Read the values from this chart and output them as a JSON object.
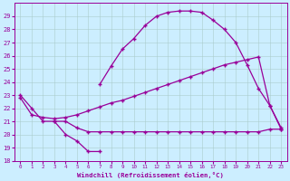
{
  "xlabel": "Windchill (Refroidissement éolien,°C)",
  "background_color": "#cceeff",
  "line_color": "#990099",
  "ylim": [
    18,
    30
  ],
  "xlim": [
    -0.5,
    23.5
  ],
  "yticks": [
    18,
    19,
    20,
    21,
    22,
    23,
    24,
    25,
    26,
    27,
    28,
    29
  ],
  "xticks": [
    0,
    1,
    2,
    3,
    4,
    5,
    6,
    7,
    8,
    9,
    10,
    11,
    12,
    13,
    14,
    15,
    16,
    17,
    18,
    19,
    20,
    21,
    22,
    23
  ],
  "grid_color": "#aacccc",
  "marker": "+",
  "curve1_x": [
    0,
    1,
    2,
    3,
    4,
    5,
    6,
    7
  ],
  "curve1_y": [
    23,
    22,
    21,
    21,
    20,
    19.5,
    18.7,
    18.7
  ],
  "curve2_x": [
    3,
    4,
    5,
    6,
    7,
    8,
    9,
    10,
    11,
    12,
    13,
    14,
    15,
    16,
    17,
    18,
    19,
    20,
    21,
    22,
    23
  ],
  "curve2_y": [
    21,
    21,
    20.5,
    20.2,
    20.2,
    20.2,
    20.2,
    20.2,
    20.2,
    20.2,
    20.2,
    20.2,
    20.2,
    20.2,
    20.2,
    20.2,
    20.2,
    20.2,
    20.2,
    20.4,
    20.4
  ],
  "curve3_x": [
    0,
    1,
    2,
    3,
    4,
    5,
    6,
    7,
    8,
    9,
    10,
    11,
    12,
    13,
    14,
    15,
    16,
    17,
    18,
    19,
    20,
    21,
    22,
    23
  ],
  "curve3_y": [
    22.8,
    21.5,
    21.3,
    21.2,
    21.3,
    21.5,
    21.8,
    22.1,
    22.4,
    22.6,
    22.9,
    23.2,
    23.5,
    23.8,
    24.1,
    24.4,
    24.7,
    25.0,
    25.3,
    25.5,
    25.7,
    25.9,
    22.2,
    20.5
  ],
  "curve4_x": [
    7,
    8,
    9,
    10,
    11,
    12,
    13,
    14,
    15,
    16,
    17,
    18,
    19,
    20,
    21,
    22,
    23
  ],
  "curve4_y": [
    23.8,
    25.2,
    26.5,
    27.3,
    28.3,
    29.0,
    29.3,
    29.4,
    29.4,
    29.3,
    28.7,
    28.0,
    27.0,
    25.3,
    23.5,
    22.2,
    20.4
  ]
}
